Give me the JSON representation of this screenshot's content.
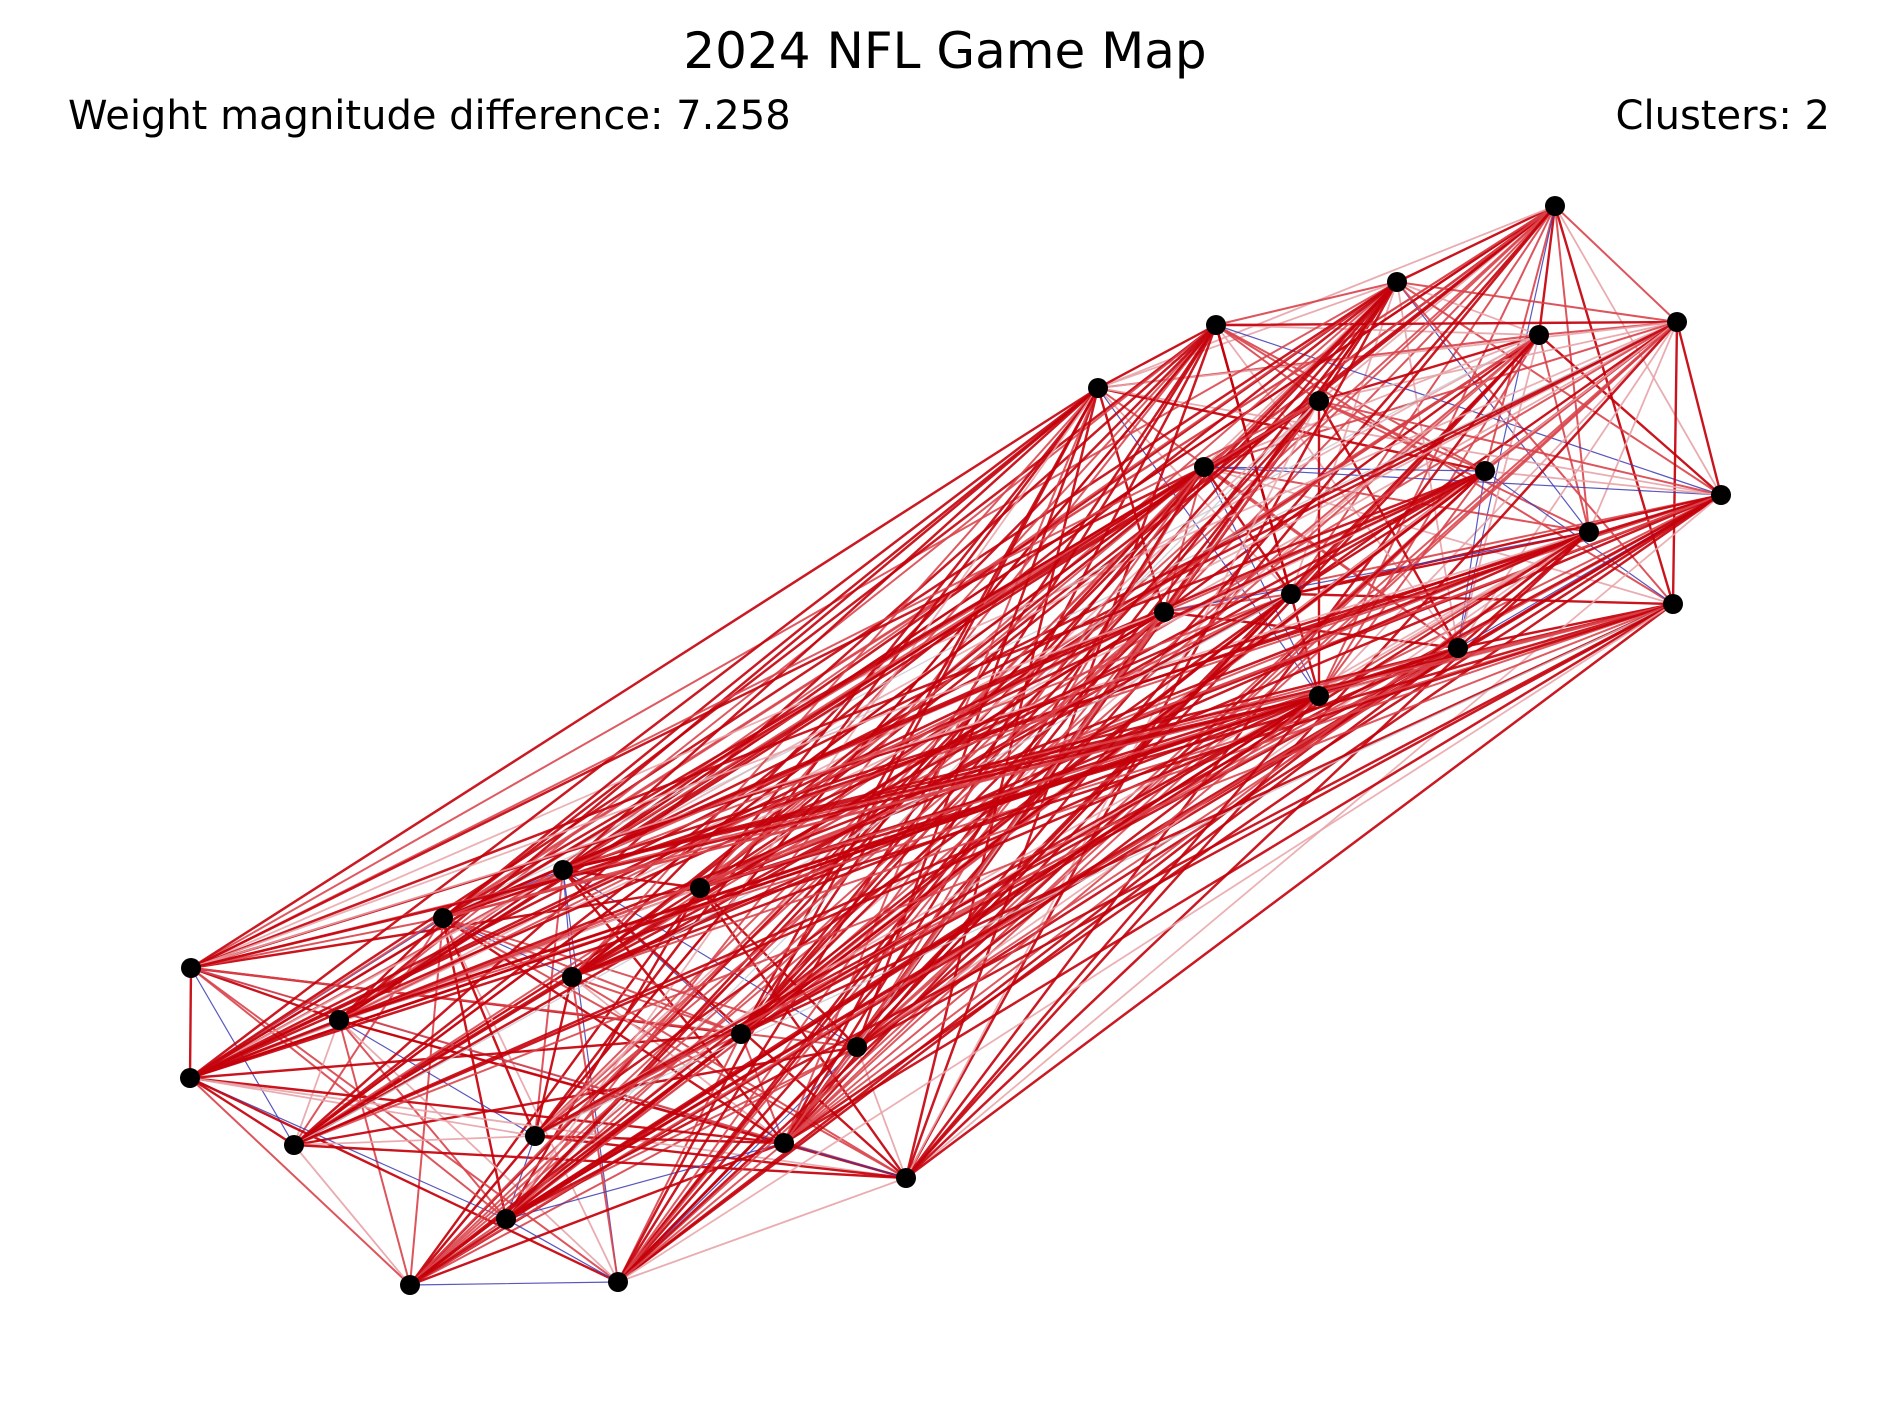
{
  "title": "2024 NFL Game Map",
  "weight_label": "Weight magnitude difference: 7.258",
  "clusters_label": "Clusters: 2",
  "colors": {
    "background": "#ffffff",
    "node": "#000000",
    "edge_strong": "#c4000a",
    "edge_medium": "#d9424a",
    "edge_light": "#e7a3a8",
    "edge_blue": "#3b3bb3",
    "edge_grey": "#c8c8d0"
  },
  "graph": {
    "node_count": 32,
    "clusters": 2,
    "edge_types": [
      "strong-red",
      "medium-red",
      "light-red",
      "blue",
      "grey"
    ]
  }
}
